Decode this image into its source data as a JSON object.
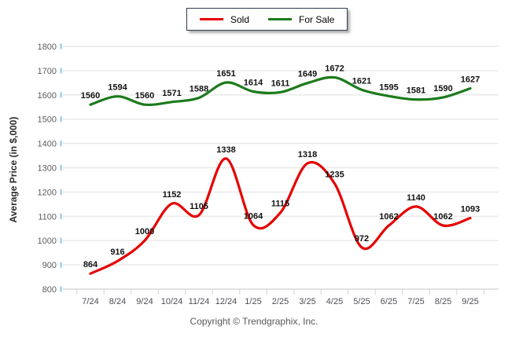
{
  "legend": {
    "items": [
      {
        "label": "Sold",
        "color": "#e60000"
      },
      {
        "label": "For Sale",
        "color": "#1b7a1b"
      }
    ]
  },
  "footer": {
    "copyright": "Copyright © Trendgraphix, Inc."
  },
  "chart_data": {
    "type": "line",
    "title": "",
    "ylabel": "Average Price (in $,000)",
    "xlabel": "",
    "ylim": [
      800,
      1800
    ],
    "ytick_step": 100,
    "grid": "horizontal",
    "legend_position": "top-center",
    "data_labels": true,
    "line_style": "smooth",
    "categories": [
      "7/24",
      "8/24",
      "9/24",
      "10/24",
      "11/24",
      "12/24",
      "1/25",
      "2/25",
      "3/25",
      "4/25",
      "5/25",
      "6/25",
      "7/25",
      "8/25",
      "9/25"
    ],
    "series": [
      {
        "name": "Sold",
        "color": "#e60000",
        "values": [
          864,
          916,
          1000,
          1152,
          1105,
          1338,
          1064,
          1115,
          1318,
          1235,
          972,
          1062,
          1140,
          1062,
          1093
        ]
      },
      {
        "name": "For Sale",
        "color": "#1b7a1b",
        "values": [
          1560,
          1594,
          1560,
          1571,
          1588,
          1651,
          1614,
          1611,
          1649,
          1672,
          1621,
          1595,
          1581,
          1590,
          1627
        ]
      }
    ],
    "axis_colors": {
      "gridline": "#e8e8e8",
      "axis_line": "#d9d9d9",
      "x_tick": "#d8d8d8",
      "y_tick_blue": "#9fd0f4"
    }
  }
}
